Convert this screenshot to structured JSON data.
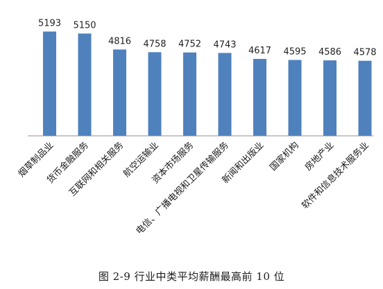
{
  "chart_data": {
    "type": "bar",
    "categories": [
      "烟草制品业",
      "货币金融服务",
      "互联网和相关服务",
      "航空运输业",
      "资本市场服务",
      "电信、广播电视和卫星传输服务",
      "新闻和出版业",
      "国家机构",
      "房地产业",
      "软件和信息技术服务业"
    ],
    "values": [
      5193,
      5150,
      4816,
      4758,
      4752,
      4743,
      4617,
      4595,
      4586,
      4578
    ],
    "data_labels": [
      "5193",
      "5150",
      "4816",
      "4758",
      "4752",
      "4743",
      "4617",
      "4595",
      "4586",
      "4578"
    ],
    "bar_color": "#4f81bd",
    "grid": false,
    "legend": "none"
  },
  "caption": "图 2-9  行业中类平均薪酬最高前 10 位"
}
